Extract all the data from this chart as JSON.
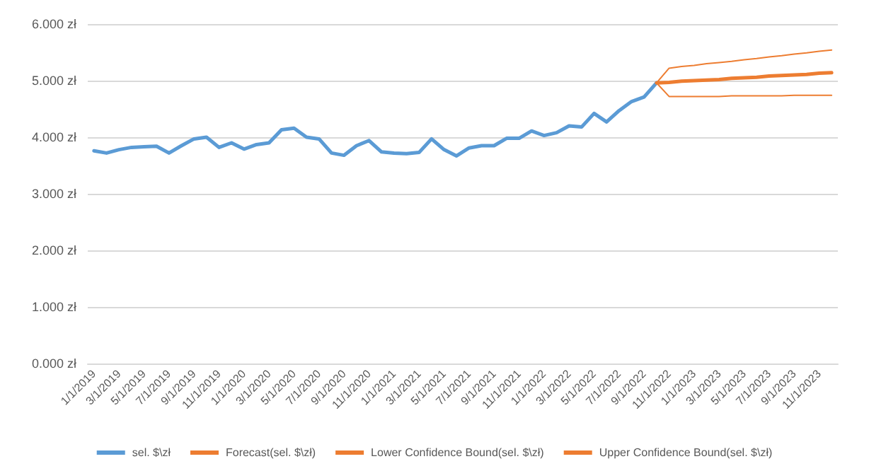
{
  "chart_data": {
    "type": "line",
    "categories": [
      "1/1/2019",
      null,
      "3/1/2019",
      null,
      "5/1/2019",
      null,
      "7/1/2019",
      null,
      "9/1/2019",
      null,
      "11/1/2019",
      null,
      "1/1/2020",
      null,
      "3/1/2020",
      null,
      "5/1/2020",
      null,
      "7/1/2020",
      null,
      "9/1/2020",
      null,
      "11/1/2020",
      null,
      "1/1/2021",
      null,
      "3/1/2021",
      null,
      "5/1/2021",
      null,
      "7/1/2021",
      null,
      "9/1/2021",
      null,
      "11/1/2021",
      null,
      "1/1/2022",
      null,
      "3/1/2022",
      null,
      "5/1/2022",
      null,
      "7/1/2022",
      null,
      "9/1/2022",
      null,
      "11/1/2022",
      null,
      "1/1/2023",
      null,
      "3/1/2023",
      null,
      "5/1/2023",
      null,
      "7/1/2023",
      null,
      "9/1/2023",
      null,
      "11/1/2023",
      null
    ],
    "series": [
      {
        "name": "sel. $\\zł",
        "color": "#5b9bd5",
        "values": [
          3.76,
          3.72,
          3.78,
          3.82,
          3.83,
          3.84,
          3.72,
          3.85,
          3.97,
          4.0,
          3.82,
          3.9,
          3.79,
          3.87,
          3.9,
          4.13,
          4.16,
          4.0,
          3.97,
          3.72,
          3.68,
          3.85,
          3.94,
          3.74,
          3.72,
          3.71,
          3.73,
          3.97,
          3.78,
          3.67,
          3.81,
          3.85,
          3.85,
          3.98,
          3.98,
          4.11,
          4.03,
          4.08,
          4.2,
          4.18,
          4.42,
          4.27,
          4.47,
          4.63,
          4.71,
          4.96,
          null,
          null,
          null,
          null,
          null,
          null,
          null,
          null,
          null,
          null,
          null,
          null,
          null,
          null
        ]
      },
      {
        "name": "Forecast(sel. $\\zł)",
        "color": "#ed7d31",
        "values": [
          null,
          null,
          null,
          null,
          null,
          null,
          null,
          null,
          null,
          null,
          null,
          null,
          null,
          null,
          null,
          null,
          null,
          null,
          null,
          null,
          null,
          null,
          null,
          null,
          null,
          null,
          null,
          null,
          null,
          null,
          null,
          null,
          null,
          null,
          null,
          null,
          null,
          null,
          null,
          null,
          null,
          null,
          null,
          null,
          null,
          4.96,
          4.97,
          4.99,
          5.0,
          5.01,
          5.02,
          5.04,
          5.05,
          5.06,
          5.08,
          5.09,
          5.1,
          5.11,
          5.13,
          5.14
        ]
      },
      {
        "name": "Lower Confidence Bound(sel. $\\zł)",
        "color": "#ed7d31",
        "values": [
          null,
          null,
          null,
          null,
          null,
          null,
          null,
          null,
          null,
          null,
          null,
          null,
          null,
          null,
          null,
          null,
          null,
          null,
          null,
          null,
          null,
          null,
          null,
          null,
          null,
          null,
          null,
          null,
          null,
          null,
          null,
          null,
          null,
          null,
          null,
          null,
          null,
          null,
          null,
          null,
          null,
          null,
          null,
          null,
          null,
          4.96,
          4.72,
          4.72,
          4.72,
          4.72,
          4.72,
          4.73,
          4.73,
          4.73,
          4.73,
          4.73,
          4.74,
          4.74,
          4.74,
          4.74
        ]
      },
      {
        "name": "Upper Confidence Bound(sel. $\\zł)",
        "color": "#ed7d31",
        "values": [
          null,
          null,
          null,
          null,
          null,
          null,
          null,
          null,
          null,
          null,
          null,
          null,
          null,
          null,
          null,
          null,
          null,
          null,
          null,
          null,
          null,
          null,
          null,
          null,
          null,
          null,
          null,
          null,
          null,
          null,
          null,
          null,
          null,
          null,
          null,
          null,
          null,
          null,
          null,
          null,
          null,
          null,
          null,
          null,
          null,
          4.96,
          5.22,
          5.25,
          5.27,
          5.3,
          5.32,
          5.34,
          5.37,
          5.39,
          5.42,
          5.44,
          5.47,
          5.49,
          5.52,
          5.54
        ]
      }
    ],
    "ylim": [
      0,
      6
    ],
    "yticks": [
      {
        "value": 0,
        "label": "0.000 zł"
      },
      {
        "value": 1,
        "label": "1.000 zł"
      },
      {
        "value": 2,
        "label": "2.000 zł"
      },
      {
        "value": 3,
        "label": "3.000 zł"
      },
      {
        "value": 4,
        "label": "4.000 zł"
      },
      {
        "value": 5,
        "label": "5.000 zł"
      },
      {
        "value": 6,
        "label": "6.000 zł"
      }
    ],
    "grid": "y",
    "legend": "bottom",
    "marker": "none",
    "line_style": "solid"
  }
}
